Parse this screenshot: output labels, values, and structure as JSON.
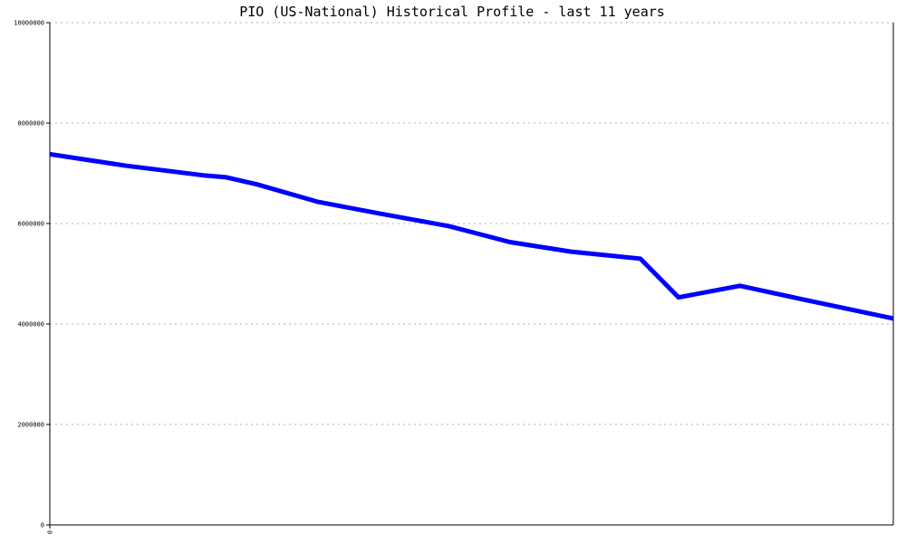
{
  "chart_data": {
    "type": "line",
    "title": "PIO (US-National) Historical Profile - last 11 years",
    "xlabel": "",
    "ylabel": "",
    "x_tick_labels": [
      "0"
    ],
    "y_tick_labels": [
      "10000000",
      "8000000",
      "6000000",
      "4000000",
      "2000000",
      "0"
    ],
    "y_ticks": [
      10000000,
      8000000,
      6000000,
      4000000,
      2000000,
      0
    ],
    "ylim": [
      0,
      10000000
    ],
    "xlim": [
      0,
      11
    ],
    "grid": true,
    "colors": {
      "line": "#0000ff",
      "grid": "#b0b0b0",
      "axis": "#000000"
    },
    "series": [
      {
        "x": [
          0,
          1,
          2,
          2.3,
          2.7,
          3.5,
          4.3,
          5.2,
          6.0,
          6.8,
          7.7,
          8.2,
          9.0,
          10.0,
          11.0
        ],
        "values": [
          7380000,
          7150000,
          6960000,
          6920000,
          6780000,
          6430000,
          6200000,
          5950000,
          5630000,
          5440000,
          5300000,
          4530000,
          4760000,
          4430000,
          4110000
        ]
      }
    ]
  }
}
